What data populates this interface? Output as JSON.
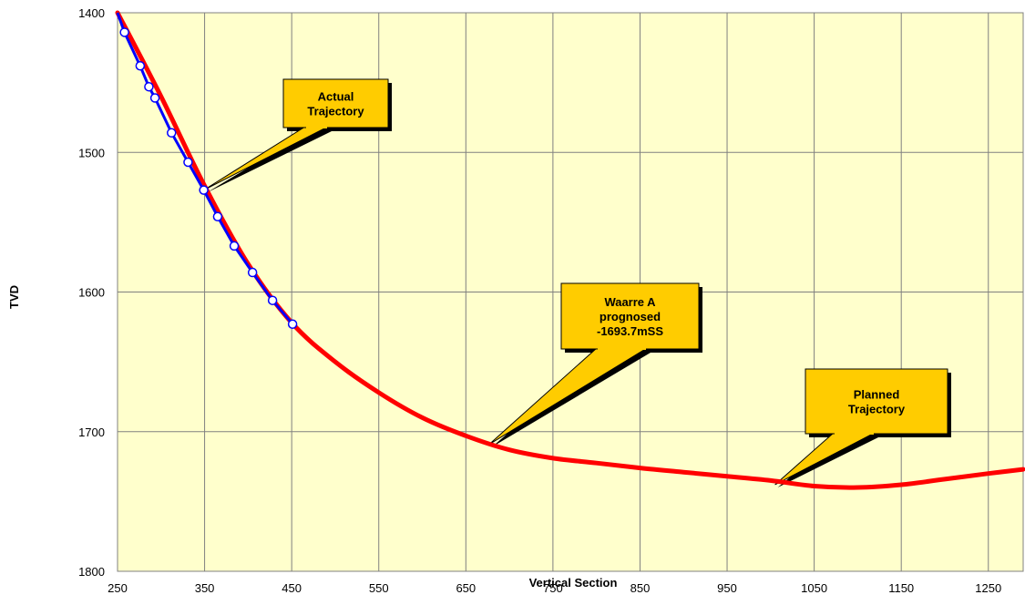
{
  "chart_data": {
    "type": "line",
    "title": "",
    "xlabel": "Vertical Section",
    "ylabel": "TVD",
    "xlim": [
      250,
      1290
    ],
    "ylim": [
      1400,
      1800
    ],
    "y_inverted": true,
    "grid": true,
    "legend": "none",
    "x_ticks": [
      "250",
      "350",
      "450",
      "550",
      "650",
      "750",
      "850",
      "950",
      "1050",
      "1150",
      "1250"
    ],
    "y_ticks": [
      "1400",
      "1500",
      "1600",
      "1700",
      "1800"
    ],
    "colors": {
      "plot_background": "#FFFFCC",
      "grid": "#808080",
      "planned": "#FF0000",
      "actual": "#0000FF",
      "marker_fill": "#FFFFFF",
      "callout_fill": "#FFCC00"
    },
    "series": [
      {
        "key": "planned",
        "x": [
          250,
          300,
          350,
          400,
          450,
          500,
          550,
          600,
          650,
          700,
          750,
          800,
          850,
          900,
          950,
          1000,
          1050,
          1100,
          1150,
          1200,
          1250,
          1290
        ],
        "y": [
          1400,
          1460,
          1524,
          1580,
          1622,
          1650,
          1672,
          1690,
          1703,
          1713,
          1719,
          1722.5,
          1726,
          1729,
          1732,
          1735,
          1739,
          1740,
          1738,
          1734,
          1730,
          1727
        ]
      },
      {
        "key": "actual",
        "markers": true,
        "x": [
          250,
          258,
          276,
          286,
          293,
          312,
          331,
          349,
          365,
          384,
          405,
          428,
          451
        ],
        "y": [
          1400,
          1414,
          1438,
          1453,
          1461,
          1486,
          1507,
          1527,
          1546,
          1567,
          1586,
          1606,
          1623
        ]
      }
    ],
    "annotations": [
      {
        "text": [
          "Actual",
          "Trajectory"
        ],
        "points_to": [
          349,
          1527
        ]
      },
      {
        "text": [
          "Waarre A",
          "prognosed",
          "-1693.7mSS"
        ],
        "points_to": [
          677,
          1709
        ]
      },
      {
        "text": [
          "Planned",
          "Trajectory"
        ],
        "points_to": [
          1005,
          1738
        ]
      }
    ]
  }
}
